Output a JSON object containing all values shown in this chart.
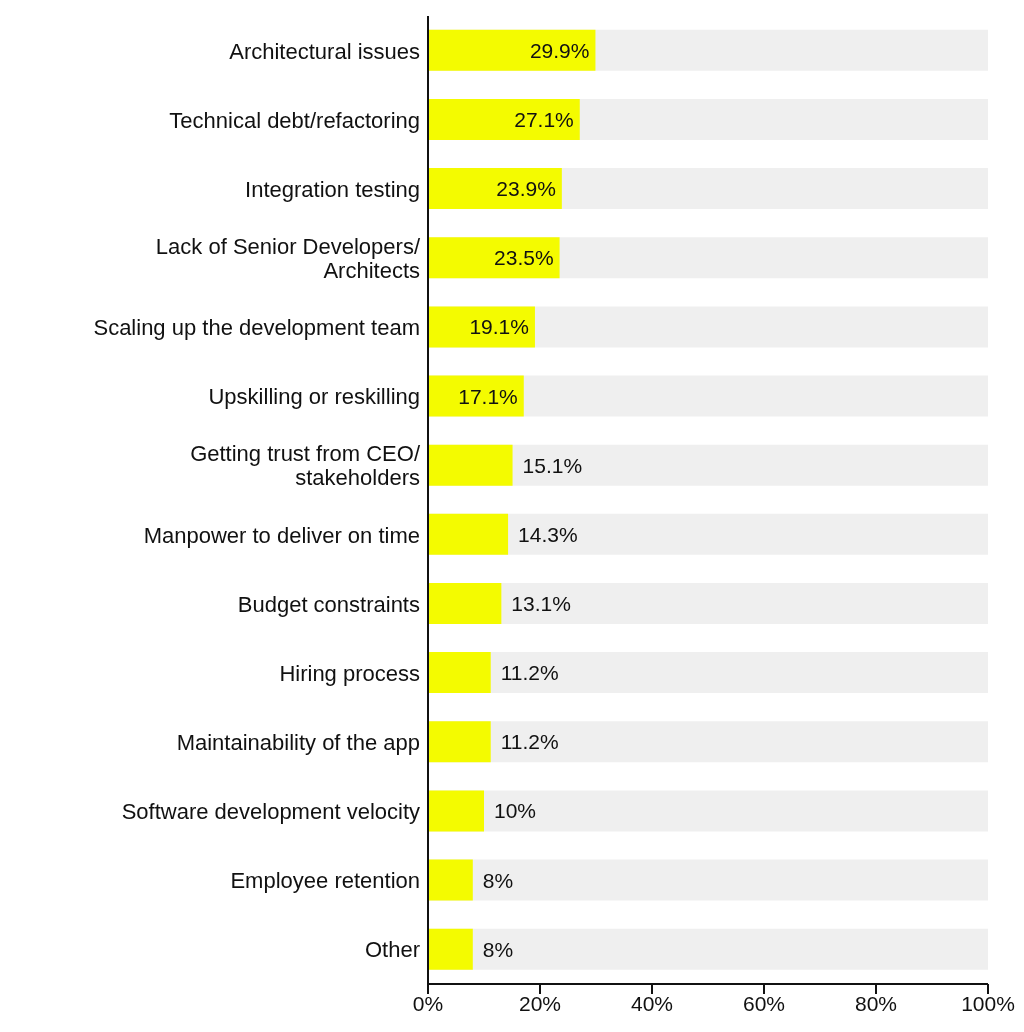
{
  "chart_data": {
    "type": "bar",
    "orientation": "horizontal",
    "categories": [
      "Architectural issues",
      "Technical debt/refactoring",
      "Integration testing",
      "Lack of Senior Developers/ Architects",
      "Scaling up the development team",
      "Upskilling or reskilling",
      "Getting trust from CEO/ stakeholders",
      "Manpower to deliver on time",
      "Budget constraints",
      "Hiring process",
      "Maintainability of the app",
      "Software development velocity",
      "Employee retention",
      "Other"
    ],
    "values": [
      29.9,
      27.1,
      23.9,
      23.5,
      19.1,
      17.1,
      15.1,
      14.3,
      13.1,
      11.2,
      11.2,
      10,
      8,
      8
    ],
    "value_labels": [
      "29.9%",
      "27.1%",
      "23.9%",
      "23.5%",
      "19.1%",
      "17.1%",
      "15.1%",
      "14.3%",
      "13.1%",
      "11.2%",
      "11.2%",
      "10%",
      "8%",
      "8%"
    ],
    "color": "#f4fb00",
    "xlim": [
      0,
      100
    ],
    "xticks": [
      {
        "value": 0,
        "label": "0%"
      },
      {
        "value": 20,
        "label": "20%"
      },
      {
        "value": 40,
        "label": "40%"
      },
      {
        "value": 60,
        "label": "60%"
      },
      {
        "value": 80,
        "label": "80%"
      },
      {
        "value": 100,
        "label": "100%"
      }
    ],
    "grid": false,
    "legend": false
  }
}
